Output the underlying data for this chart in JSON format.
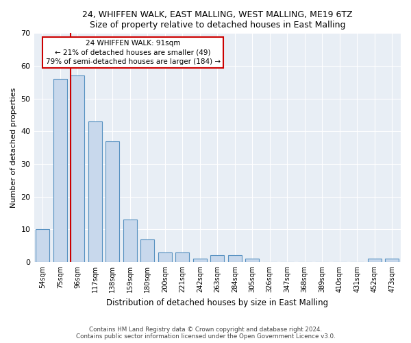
{
  "title": "24, WHIFFEN WALK, EAST MALLING, WEST MALLING, ME19 6TZ",
  "subtitle": "Size of property relative to detached houses in East Malling",
  "xlabel": "Distribution of detached houses by size in East Malling",
  "ylabel": "Number of detached properties",
  "categories": [
    "54sqm",
    "75sqm",
    "96sqm",
    "117sqm",
    "138sqm",
    "159sqm",
    "180sqm",
    "200sqm",
    "221sqm",
    "242sqm",
    "263sqm",
    "284sqm",
    "305sqm",
    "326sqm",
    "347sqm",
    "368sqm",
    "389sqm",
    "410sqm",
    "431sqm",
    "452sqm",
    "473sqm"
  ],
  "values": [
    10,
    56,
    57,
    43,
    37,
    13,
    7,
    3,
    3,
    1,
    2,
    2,
    1,
    0,
    0,
    0,
    0,
    0,
    0,
    1,
    1
  ],
  "bar_color": "#c8d8ec",
  "bar_edge_color": "#5590c0",
  "vline_bar_index": 2,
  "vline_color": "#cc0000",
  "annotation_text": "24 WHIFFEN WALK: 91sqm\n← 21% of detached houses are smaller (49)\n79% of semi-detached houses are larger (184) →",
  "annotation_box_edge_color": "#cc0000",
  "ylim_max": 70,
  "yticks": [
    0,
    10,
    20,
    30,
    40,
    50,
    60,
    70
  ],
  "plot_bg_color": "#e8eef5",
  "grid_color": "white",
  "footer_line1": "Contains HM Land Registry data © Crown copyright and database right 2024.",
  "footer_line2": "Contains public sector information licensed under the Open Government Licence v3.0."
}
